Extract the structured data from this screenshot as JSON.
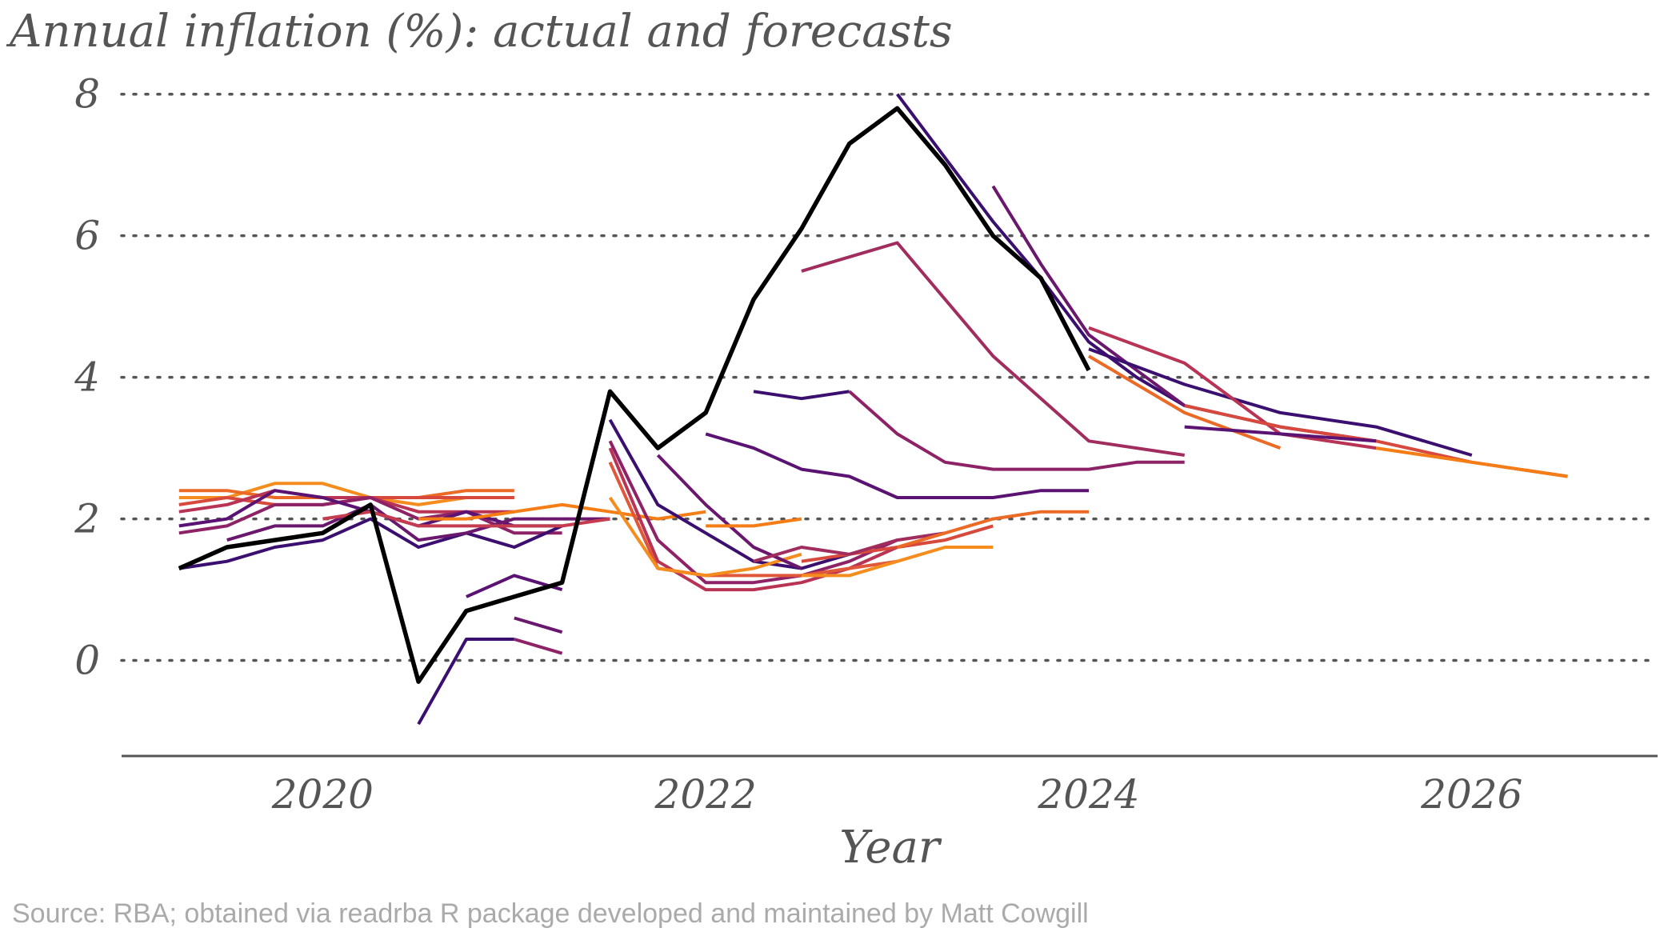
{
  "chart_data": {
    "type": "line",
    "title": "Annual inflation (%): actual and forecasts",
    "xlabel": "Year",
    "ylabel": "",
    "caption": "Source: RBA; obtained via readrba R package developed and maintained by Matt Cowgill",
    "xlim": [
      2018.95,
      2026.97
    ],
    "ylim": [
      -1.35,
      8.2
    ],
    "xticks": [
      2020,
      2022,
      2024,
      2026
    ],
    "yticks": [
      0,
      2,
      4,
      6,
      8
    ],
    "grid": "horizontal dotted",
    "legend": "none",
    "actual_color": "#000000",
    "series": [
      {
        "role": "actual",
        "color": "#000000",
        "x": [
          2019.25,
          2019.5,
          2019.75,
          2020.0,
          2020.25,
          2020.5,
          2020.75,
          2021.0,
          2021.25,
          2021.5,
          2021.75,
          2022.0,
          2022.25,
          2022.5,
          2022.75,
          2023.0,
          2023.25,
          2023.5,
          2023.75,
          2024.0
        ],
        "y": [
          1.3,
          1.6,
          1.7,
          1.8,
          2.2,
          -0.3,
          0.7,
          0.9,
          1.1,
          3.8,
          3.0,
          3.5,
          5.1,
          6.1,
          7.3,
          7.8,
          7.0,
          6.0,
          5.4,
          4.1
        ]
      },
      {
        "role": "forecast",
        "color": "#f48c1e",
        "x": [
          2019.25,
          2019.5,
          2019.75,
          2020.0,
          2020.25,
          2020.5,
          2020.75,
          2021.0
        ],
        "y": [
          2.3,
          2.3,
          2.5,
          2.5,
          2.3,
          2.2,
          2.3,
          2.3
        ]
      },
      {
        "role": "forecast",
        "color": "#ea6a26",
        "x": [
          2019.25,
          2019.5,
          2019.75,
          2020.0,
          2020.25,
          2020.5,
          2020.75,
          2021.0
        ],
        "y": [
          2.4,
          2.4,
          2.3,
          2.3,
          2.3,
          2.3,
          2.4,
          2.4
        ]
      },
      {
        "role": "forecast",
        "color": "#d6493c",
        "x": [
          2019.25,
          2019.5,
          2019.75,
          2020.0,
          2020.25,
          2020.5,
          2020.75,
          2021.0
        ],
        "y": [
          2.2,
          2.3,
          2.2,
          2.2,
          2.3,
          2.3,
          2.3,
          2.3
        ]
      },
      {
        "role": "forecast",
        "color": "#b93454",
        "x": [
          2019.25,
          2019.5,
          2019.75,
          2020.0,
          2020.25,
          2020.5,
          2020.75,
          2021.0
        ],
        "y": [
          2.1,
          2.2,
          2.4,
          2.3,
          2.3,
          2.1,
          2.1,
          2.1
        ]
      },
      {
        "role": "forecast",
        "color": "#8e2267",
        "x": [
          2019.25,
          2019.5,
          2019.75,
          2020.0,
          2020.25,
          2020.5,
          2020.75,
          2021.0,
          2021.25
        ],
        "y": [
          1.8,
          1.9,
          2.2,
          2.2,
          2.3,
          2.0,
          2.1,
          1.8,
          1.8
        ]
      },
      {
        "role": "forecast",
        "color": "#5a1273",
        "x": [
          2019.25,
          2019.5,
          2019.75,
          2020.0,
          2020.25,
          2020.5,
          2020.75,
          2021.0,
          2021.25
        ],
        "y": [
          1.9,
          2.0,
          2.4,
          2.3,
          2.1,
          1.9,
          2.1,
          1.9,
          1.9
        ]
      },
      {
        "role": "forecast",
        "color": "#3b0f6f",
        "x": [
          2019.25,
          2019.5,
          2019.75,
          2020.0,
          2020.25,
          2020.5,
          2020.75,
          2021.0,
          2021.25
        ],
        "y": [
          1.3,
          1.4,
          1.6,
          1.7,
          2.0,
          1.6,
          1.8,
          1.6,
          1.9
        ]
      },
      {
        "role": "forecast",
        "color": "#6a176e",
        "x": [
          2019.5,
          2019.75,
          2020.0,
          2020.25,
          2020.5,
          2020.75,
          2021.0,
          2021.25,
          2021.5
        ],
        "y": [
          1.7,
          1.9,
          1.9,
          2.2,
          1.7,
          1.8,
          2.0,
          2.0,
          2.0
        ]
      },
      {
        "role": "forecast",
        "color": "#c43c4e",
        "x": [
          2020.0,
          2020.25,
          2020.5,
          2020.75,
          2021.0,
          2021.25,
          2021.5
        ],
        "y": [
          2.0,
          2.1,
          1.9,
          1.9,
          1.9,
          1.9,
          2.0
        ]
      },
      {
        "role": "forecast",
        "color": "#f57d15",
        "x": [
          2020.5,
          2020.75,
          2021.0,
          2021.25,
          2021.5,
          2021.75,
          2022.0
        ],
        "y": [
          2.0,
          2.0,
          2.1,
          2.2,
          2.1,
          2.0,
          2.1
        ]
      },
      {
        "role": "forecast",
        "color": "#3b0f6f",
        "x": [
          2020.5,
          2020.75,
          2021.0
        ],
        "y": [
          -0.9,
          0.3,
          0.3
        ]
      },
      {
        "role": "forecast",
        "color": "#5a1273",
        "x": [
          2020.75,
          2021.0,
          2021.25
        ],
        "y": [
          0.9,
          1.2,
          1.0
        ]
      },
      {
        "role": "forecast",
        "color": "#8e2267",
        "x": [
          2021.0,
          2021.25
        ],
        "y": [
          0.3,
          0.1
        ]
      },
      {
        "role": "forecast",
        "color": "#6a176e",
        "x": [
          2021.0,
          2021.25
        ],
        "y": [
          0.6,
          0.4
        ]
      },
      {
        "role": "forecast",
        "color": "#3b0f6f",
        "x": [
          2021.5,
          2021.75,
          2022.0,
          2022.25,
          2022.5,
          2022.75
        ],
        "y": [
          3.4,
          2.2,
          1.8,
          1.4,
          1.3,
          1.5
        ]
      },
      {
        "role": "forecast",
        "color": "#8e2267",
        "x": [
          2021.5,
          2021.75,
          2022.0,
          2022.25,
          2022.5,
          2022.75,
          2023.0
        ],
        "y": [
          3.1,
          1.7,
          1.1,
          1.1,
          1.2,
          1.4,
          1.7
        ]
      },
      {
        "role": "forecast",
        "color": "#b93454",
        "x": [
          2021.5,
          2021.75,
          2022.0,
          2022.25,
          2022.5,
          2022.75,
          2023.0
        ],
        "y": [
          3.0,
          1.4,
          1.0,
          1.0,
          1.1,
          1.3,
          1.6
        ]
      },
      {
        "role": "forecast",
        "color": "#e0573a",
        "x": [
          2021.5,
          2021.75,
          2022.0,
          2022.25,
          2022.5,
          2022.75,
          2023.0
        ],
        "y": [
          2.8,
          1.3,
          1.2,
          1.2,
          1.2,
          1.3,
          1.4
        ]
      },
      {
        "role": "forecast",
        "color": "#f48c1e",
        "x": [
          2021.5,
          2021.75,
          2022.0,
          2022.25,
          2022.5
        ],
        "y": [
          2.3,
          1.3,
          1.2,
          1.3,
          1.5
        ]
      },
      {
        "role": "forecast",
        "color": "#6a176e",
        "x": [
          2021.75,
          2022.0,
          2022.25,
          2022.5
        ],
        "y": [
          2.9,
          2.2,
          1.6,
          1.3
        ]
      },
      {
        "role": "forecast",
        "color": "#f57d15",
        "x": [
          2022.0,
          2022.25,
          2022.5
        ],
        "y": [
          1.9,
          1.9,
          2.0
        ]
      },
      {
        "role": "forecast",
        "color": "#f48c1e",
        "x": [
          2022.5,
          2022.75,
          2023.0,
          2023.25,
          2023.5
        ],
        "y": [
          1.2,
          1.2,
          1.4,
          1.6,
          1.6
        ]
      },
      {
        "role": "forecast",
        "color": "#d6493c",
        "x": [
          2022.5,
          2022.75,
          2023.0,
          2023.25,
          2023.5
        ],
        "y": [
          1.4,
          1.5,
          1.6,
          1.7,
          1.9
        ]
      },
      {
        "role": "forecast",
        "color": "#a12d5e",
        "x": [
          2022.25,
          2022.5,
          2022.75,
          2023.0,
          2023.25
        ],
        "y": [
          1.4,
          1.6,
          1.5,
          1.7,
          1.8
        ]
      },
      {
        "role": "forecast",
        "color": "#ea6a26",
        "x": [
          2023.0,
          2023.25,
          2023.5,
          2023.75,
          2024.0
        ],
        "y": [
          1.6,
          1.8,
          2.0,
          2.1,
          2.1
        ]
      },
      {
        "role": "forecast",
        "color": "#5a1273",
        "x": [
          2022.0,
          2022.25,
          2022.5,
          2022.75,
          2023.0,
          2023.25,
          2023.5,
          2023.75,
          2024.0
        ],
        "y": [
          3.2,
          3.0,
          2.7,
          2.6,
          2.3,
          2.3,
          2.3,
          2.4,
          2.4
        ]
      },
      {
        "role": "forecast",
        "color": "#3b0f6f",
        "x": [
          2022.25,
          2022.5,
          2022.75
        ],
        "y": [
          3.8,
          3.7,
          3.8
        ]
      },
      {
        "role": "forecast",
        "color": "#8e2267",
        "x": [
          2022.75,
          2023.0,
          2023.25,
          2023.5,
          2023.75,
          2024.0,
          2024.25,
          2024.5
        ],
        "y": [
          3.8,
          3.2,
          2.8,
          2.7,
          2.7,
          2.7,
          2.8,
          2.8
        ]
      },
      {
        "role": "forecast",
        "color": "#a12d5e",
        "x": [
          2022.5,
          2022.75,
          2023.0,
          2023.5,
          2024.0,
          2024.5
        ],
        "y": [
          5.5,
          5.7,
          5.9,
          4.3,
          3.1,
          2.9
        ]
      },
      {
        "role": "forecast",
        "color": "#3b0f6f",
        "x": [
          2023.0,
          2023.25,
          2023.5,
          2023.75,
          2024.0,
          2024.25,
          2024.5
        ],
        "y": [
          8.0,
          7.1,
          6.2,
          5.4,
          4.5,
          4.0,
          3.6
        ]
      },
      {
        "role": "forecast",
        "color": "#6a176e",
        "x": [
          2023.5,
          2023.75,
          2024.0,
          2024.25,
          2024.5,
          2025.0,
          2025.5
        ],
        "y": [
          6.7,
          5.6,
          4.6,
          4.1,
          3.6,
          3.3,
          3.1
        ]
      },
      {
        "role": "forecast",
        "color": "#3b0f6f",
        "x": [
          2024.0,
          2024.5,
          2025.0,
          2025.5,
          2026.0
        ],
        "y": [
          4.4,
          3.9,
          3.5,
          3.3,
          2.9
        ]
      },
      {
        "role": "forecast",
        "color": "#b93454",
        "x": [
          2024.0,
          2024.5,
          2025.0,
          2025.5
        ],
        "y": [
          4.7,
          4.2,
          3.2,
          3.0
        ]
      },
      {
        "role": "forecast",
        "color": "#ea6a26",
        "x": [
          2024.0,
          2024.5,
          2025.0
        ],
        "y": [
          4.3,
          3.5,
          3.0
        ]
      },
      {
        "role": "forecast",
        "color": "#d6493c",
        "x": [
          2024.5,
          2025.0,
          2025.5,
          2026.0,
          2026.5
        ],
        "y": [
          3.6,
          3.3,
          3.1,
          2.8,
          2.6
        ]
      },
      {
        "role": "forecast",
        "color": "#5a1273",
        "x": [
          2024.5,
          2025.0,
          2025.5
        ],
        "y": [
          3.3,
          3.2,
          3.1
        ]
      },
      {
        "role": "forecast",
        "color": "#f57d15",
        "x": [
          2025.5,
          2026.0,
          2026.5
        ],
        "y": [
          3.0,
          2.8,
          2.6
        ]
      }
    ]
  }
}
